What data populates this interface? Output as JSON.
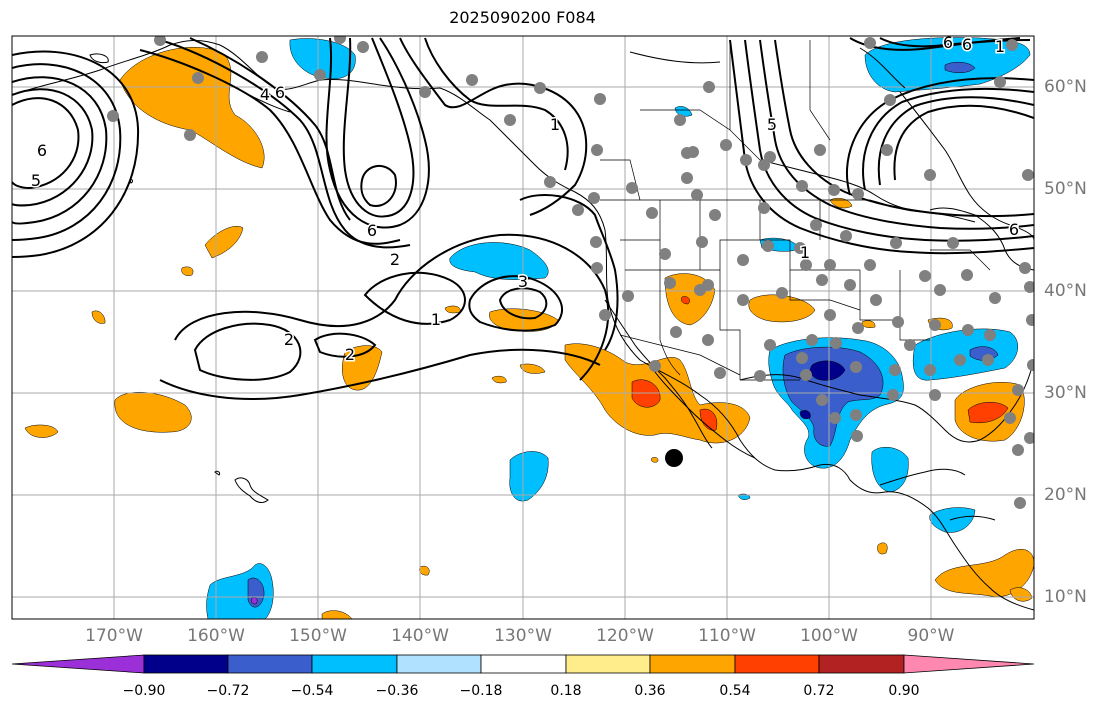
{
  "title": "2025090200 F084",
  "lon_labels": [
    "170°W",
    "160°W",
    "150°W",
    "140°W",
    "130°W",
    "120°W",
    "110°W",
    "100°W",
    "90°W"
  ],
  "lat_labels": [
    "60°N",
    "50°N",
    "40°N",
    "30°N",
    "20°N",
    "10°N"
  ],
  "contour_labels": [
    "6",
    "5",
    "6",
    "2",
    "1",
    "3",
    "2",
    "2",
    "1",
    "6",
    "1",
    "4",
    "5",
    "6",
    "1",
    "6",
    "6"
  ],
  "colorbar": {
    "ticks": [
      "−0.90",
      "−0.72",
      "−0.54",
      "−0.36",
      "−0.18",
      "0.18",
      "0.36",
      "0.54",
      "0.72",
      "0.90"
    ],
    "colors": [
      "#9b30d9",
      "#00008b",
      "#3a5fcd",
      "#00bfff",
      "#b0e2ff",
      "#ffffff",
      "#ffec8b",
      "#ffa500",
      "#ff4000",
      "#b22222",
      "#ff88b0"
    ]
  },
  "colors": {
    "neg_light": "#00bfff",
    "neg_mid": "#3a5fcd",
    "neg_dark": "#00008b",
    "pos_light": "#ffa500",
    "pos_mid": "#ff4000",
    "station": "#808080",
    "grid": "#aaaaaa"
  }
}
